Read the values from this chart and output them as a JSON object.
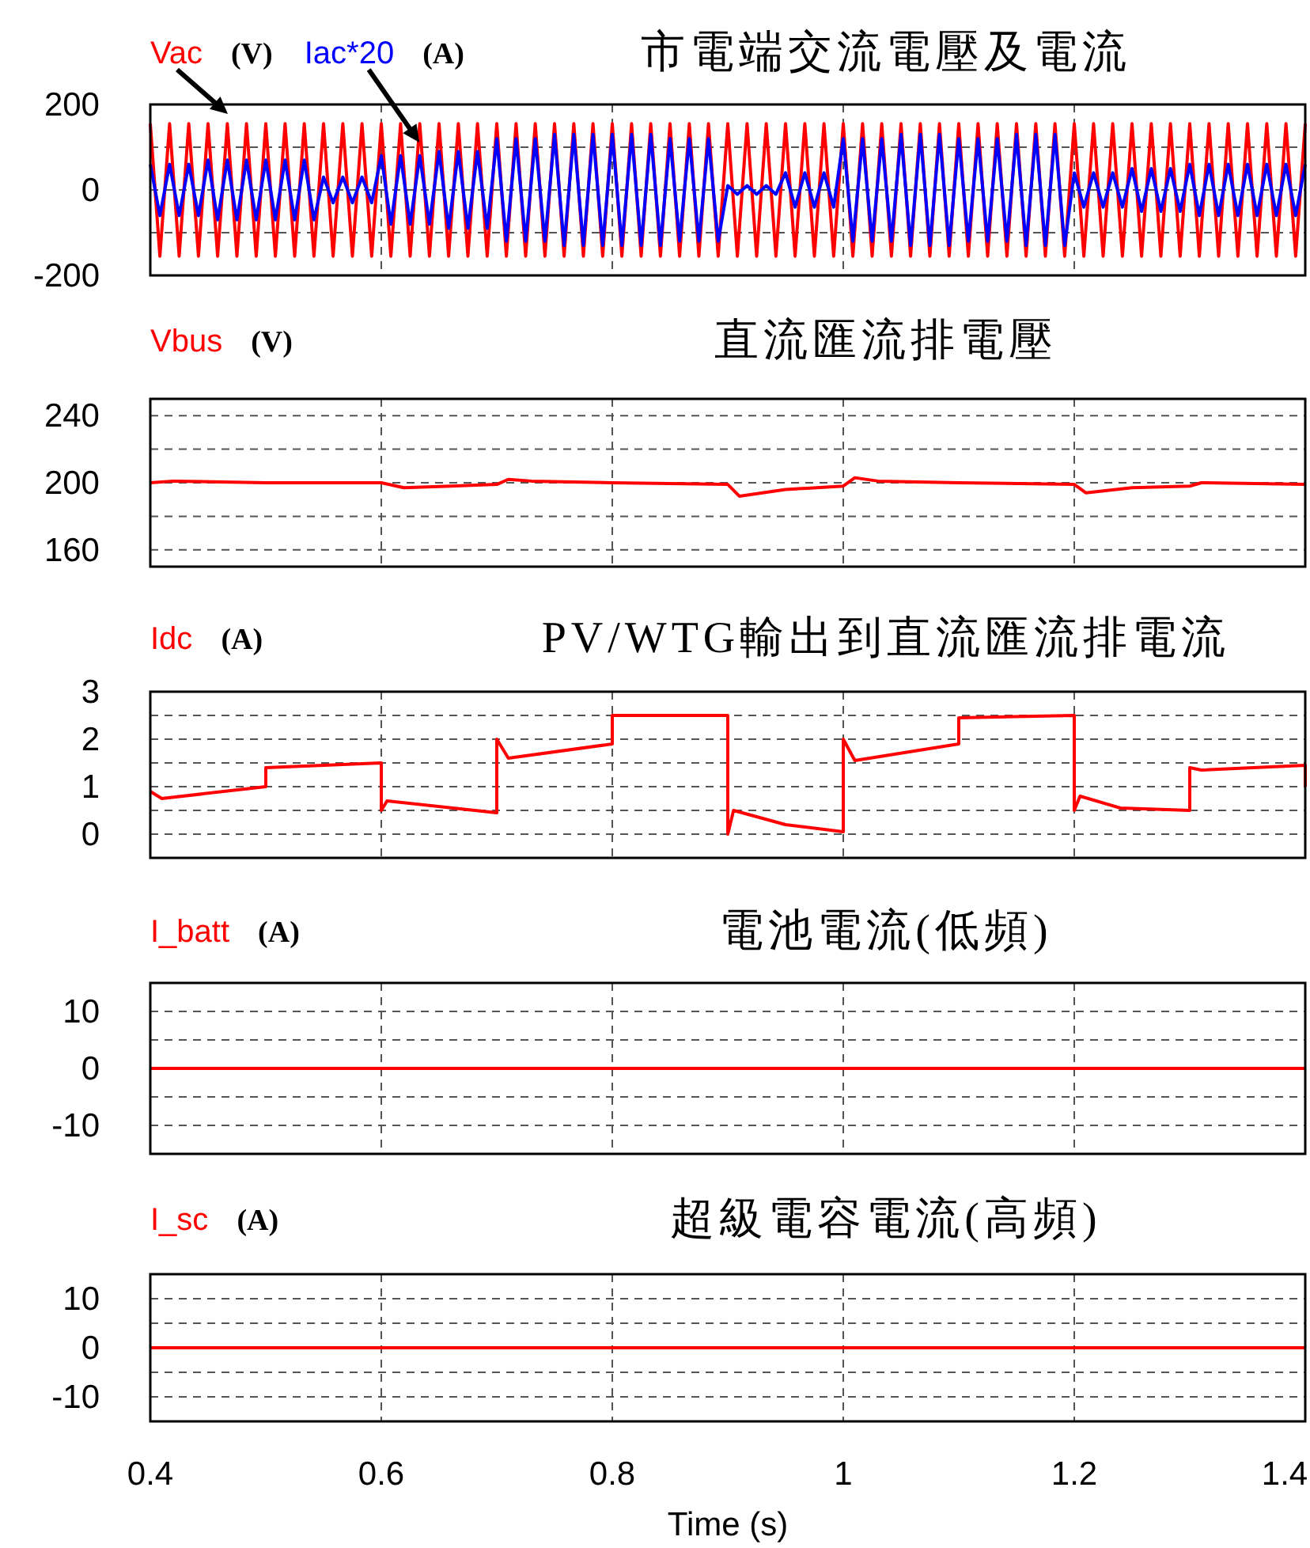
{
  "chart_data": [
    {
      "type": "line",
      "title": "市電端交流電壓及電流",
      "annotations": [
        "(V)",
        "(A)"
      ],
      "legend": "top left",
      "marker": "none",
      "line_style": "solid",
      "grid": true,
      "tick_labels": "y",
      "xlim": [
        0.4,
        1.4
      ],
      "xticks": [
        0.4,
        0.6,
        0.8,
        1,
        1.2,
        1.4
      ],
      "ylim": [
        -200,
        200
      ],
      "yticks": [
        -200,
        {
          "value": -100,
          "label": null
        },
        0,
        {
          "value": 100,
          "label": null
        },
        200
      ],
      "x": [
        0.4,
        0.4083,
        0.4167,
        0.425,
        0.4333,
        0.4417,
        0.45,
        0.4583,
        0.4667,
        0.475,
        0.4833,
        0.4917,
        0.5,
        0.5083,
        0.5167,
        0.525,
        0.5333,
        0.5417,
        0.55,
        0.5583,
        0.5667,
        0.575,
        0.5833,
        0.5917,
        0.6,
        0.6083,
        0.6167,
        0.625,
        0.6333,
        0.6417,
        0.65,
        0.6583,
        0.6667,
        0.675,
        0.6833,
        0.6917,
        0.7,
        0.7083,
        0.7167,
        0.725,
        0.7333,
        0.7417,
        0.75,
        0.7583,
        0.7667,
        0.775,
        0.7833,
        0.7917,
        0.8,
        0.8083,
        0.8167,
        0.825,
        0.8333,
        0.8417,
        0.85,
        0.8583,
        0.8667,
        0.875,
        0.8833,
        0.8917,
        0.9,
        0.9083,
        0.9167,
        0.925,
        0.9333,
        0.9417,
        0.95,
        0.9583,
        0.9667,
        0.975,
        0.9833,
        0.9917,
        1.0,
        1.0083,
        1.0167,
        1.025,
        1.0333,
        1.0417,
        1.05,
        1.0583,
        1.0667,
        1.075,
        1.0833,
        1.0917,
        1.1,
        1.1083,
        1.1167,
        1.125,
        1.1333,
        1.1417,
        1.15,
        1.1583,
        1.1667,
        1.175,
        1.1833,
        1.1917,
        1.2,
        1.2083,
        1.2167,
        1.225,
        1.2333,
        1.2417,
        1.25,
        1.2583,
        1.2667,
        1.275,
        1.2833,
        1.2917,
        1.3,
        1.3083,
        1.3167,
        1.325,
        1.3333,
        1.3417,
        1.35,
        1.3583,
        1.3667,
        1.375,
        1.3833,
        1.3917,
        1.4
      ],
      "series": [
        {
          "name": "Vac",
          "color": "#ff0000",
          "values": [
            155,
            -155,
            155,
            -155,
            155,
            -155,
            155,
            -155,
            155,
            -155,
            155,
            -155,
            155,
            -155,
            155,
            -155,
            155,
            -155,
            155,
            -155,
            155,
            -155,
            155,
            -155,
            155,
            -155,
            155,
            -155,
            155,
            -155,
            155,
            -155,
            155,
            -155,
            155,
            -155,
            155,
            -155,
            155,
            -155,
            155,
            -155,
            155,
            -155,
            155,
            -155,
            155,
            -155,
            155,
            -155,
            155,
            -155,
            155,
            -155,
            155,
            -155,
            155,
            -155,
            155,
            -155,
            155,
            -155,
            155,
            -155,
            155,
            -155,
            155,
            -155,
            155,
            -155,
            155,
            -155,
            155,
            -155,
            155,
            -155,
            155,
            -155,
            155,
            -155,
            155,
            -155,
            155,
            -155,
            155,
            -155,
            155,
            -155,
            155,
            -155,
            155,
            -155,
            155,
            -155,
            155,
            -155,
            155,
            -155,
            155,
            -155,
            155,
            -155,
            155,
            -155,
            155,
            -155,
            155,
            -155,
            155,
            -155,
            155,
            -155,
            155,
            -155,
            155,
            -155,
            155,
            -155,
            155,
            -155,
            155
          ]
        },
        {
          "name": "Iac*20",
          "color": "#0000ff",
          "values": [
            60,
            -60,
            60,
            -60,
            60,
            -60,
            70,
            -70,
            70,
            -70,
            70,
            -70,
            70,
            -70,
            70,
            -70,
            70,
            -70,
            30,
            -30,
            30,
            -30,
            30,
            -30,
            80,
            -80,
            80,
            -80,
            80,
            -80,
            90,
            -90,
            90,
            -90,
            90,
            -90,
            120,
            -120,
            120,
            -120,
            120,
            -120,
            130,
            -130,
            130,
            -130,
            130,
            -130,
            130,
            -130,
            130,
            -130,
            130,
            -130,
            120,
            -120,
            120,
            -120,
            120,
            -120,
            10,
            -10,
            10,
            -10,
            10,
            -10,
            40,
            -40,
            40,
            -40,
            40,
            -40,
            120,
            -120,
            120,
            -120,
            120,
            -120,
            130,
            -130,
            130,
            -130,
            130,
            -130,
            120,
            -120,
            120,
            -120,
            120,
            -120,
            130,
            -130,
            130,
            -130,
            130,
            -130,
            40,
            -40,
            40,
            -40,
            40,
            -40,
            50,
            -50,
            50,
            -50,
            50,
            -50,
            60,
            -60,
            60,
            -60,
            60,
            -60,
            60,
            -60,
            60,
            -60,
            60,
            -60,
            60
          ]
        }
      ]
    },
    {
      "type": "line",
      "title": "直流匯流排電壓",
      "annotations": [
        "(V)"
      ],
      "legend": "top left",
      "marker": "none",
      "line_style": "solid",
      "grid": true,
      "tick_labels": "y",
      "xlim": [
        0.4,
        1.4
      ],
      "xticks": [
        0.4,
        0.6,
        0.8,
        1,
        1.2,
        1.4
      ],
      "ylim": [
        150,
        250
      ],
      "yticks": [
        160,
        {
          "value": 180,
          "label": null
        },
        200,
        {
          "value": 220,
          "label": null
        },
        240
      ],
      "x": [
        0.4,
        0.42,
        0.5,
        0.6,
        0.62,
        0.66,
        0.7,
        0.71,
        0.73,
        0.8,
        0.9,
        0.91,
        0.95,
        1.0,
        1.01,
        1.03,
        1.1,
        1.2,
        1.21,
        1.25,
        1.3,
        1.31,
        1.4
      ],
      "series": [
        {
          "name": "Vbus",
          "color": "#ff0000",
          "values": [
            200,
            201,
            200,
            200,
            197,
            198,
            199,
            202,
            201,
            200,
            199,
            192,
            196,
            198,
            203,
            201,
            200,
            199,
            194,
            197,
            198,
            200,
            199
          ]
        }
      ]
    },
    {
      "type": "line",
      "title": "PV/WTG輸出到直流匯流排電流",
      "annotations": [
        "(A)"
      ],
      "legend": "top left",
      "marker": "none",
      "line_style": "solid",
      "grid": true,
      "tick_labels": "y",
      "xlim": [
        0.4,
        1.4
      ],
      "xticks": [
        0.4,
        0.6,
        0.8,
        1,
        1.2,
        1.4
      ],
      "ylim": [
        -0.5,
        3
      ],
      "yticks": [
        0,
        {
          "value": 0.5,
          "label": null
        },
        1,
        {
          "value": 1.5,
          "label": null
        },
        2,
        {
          "value": 2.5,
          "label": null
        },
        3
      ],
      "x": [
        0.4,
        0.41,
        0.5,
        0.5,
        0.6,
        0.6,
        0.605,
        0.7,
        0.7,
        0.71,
        0.8,
        0.8,
        0.9,
        0.9,
        0.905,
        0.95,
        1.0,
        1.0,
        1.01,
        1.1,
        1.1,
        1.2,
        1.2,
        1.205,
        1.24,
        1.3,
        1.3,
        1.31,
        1.4,
        1.4
      ],
      "series": [
        {
          "name": "Idc",
          "color": "#ff0000",
          "values": [
            0.9,
            0.75,
            1.0,
            1.4,
            1.5,
            0.5,
            0.7,
            0.45,
            2.0,
            1.6,
            1.9,
            2.5,
            2.5,
            0.0,
            0.5,
            0.2,
            0.05,
            2.0,
            1.55,
            1.9,
            2.45,
            2.5,
            0.5,
            0.8,
            0.55,
            0.5,
            1.4,
            1.35,
            1.45,
            1.0
          ]
        }
      ]
    },
    {
      "type": "line",
      "title": "電池電流(低頻)",
      "annotations": [
        "(A)"
      ],
      "legend": "top left",
      "marker": "none",
      "line_style": "solid",
      "grid": true,
      "tick_labels": "y",
      "xlim": [
        0.4,
        1.4
      ],
      "xticks": [
        0.4,
        0.6,
        0.8,
        1,
        1.2,
        1.4
      ],
      "ylim": [
        -15,
        15
      ],
      "yticks": [
        -10,
        {
          "value": -5,
          "label": null
        },
        0,
        {
          "value": 5,
          "label": null
        },
        10
      ],
      "x": [
        0.4,
        1.4
      ],
      "series": [
        {
          "name": "I_batt",
          "color": "#ff0000",
          "values": [
            0,
            0
          ]
        }
      ]
    },
    {
      "type": "line",
      "title": "超級電容電流(高頻)",
      "annotations": [
        "(A)"
      ],
      "legend": "top left",
      "marker": "none",
      "line_style": "solid",
      "grid": true,
      "xlabel": "Time (s)",
      "xlim": [
        0.4,
        1.4
      ],
      "xticks": [
        0.4,
        0.6,
        0.8,
        1,
        1.2,
        1.4
      ],
      "ylim": [
        -15,
        15
      ],
      "yticks": [
        -10,
        {
          "value": -5,
          "label": null
        },
        0,
        {
          "value": 5,
          "label": null
        },
        10
      ],
      "x": [
        0.4,
        1.4
      ],
      "series": [
        {
          "name": "I_sc",
          "color": "#ff0000",
          "values": [
            0,
            0
          ]
        }
      ]
    }
  ]
}
